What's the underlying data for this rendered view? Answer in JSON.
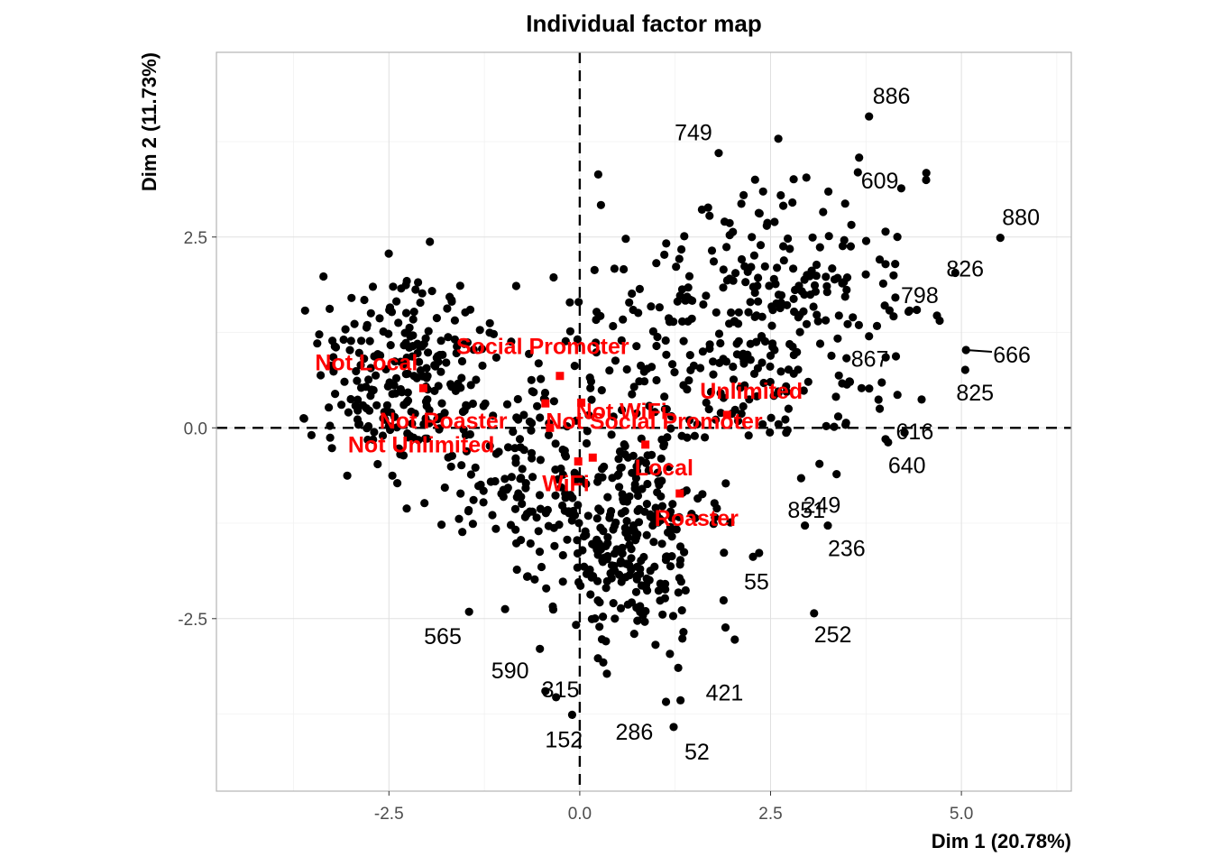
{
  "chart_data": {
    "type": "scatter",
    "title": "Individual factor map",
    "xlabel": "Dim 1 (20.78%)",
    "ylabel": "Dim 2 (11.73%)",
    "xlim": [
      -4.76,
      6.44
    ],
    "ylim": [
      -4.76,
      4.92
    ],
    "x_ticks": [
      -2.5,
      0.0,
      2.5,
      5.0
    ],
    "x_tick_labels": [
      "-2.5",
      "0.0",
      "2.5",
      "5.0"
    ],
    "y_ticks": [
      -2.5,
      0.0,
      2.5
    ],
    "y_tick_labels": [
      "-2.5",
      "0.0",
      "2.5"
    ],
    "grid": true,
    "point_color": "#000000",
    "category_color": "#ff0000",
    "labeled_individuals": [
      {
        "label": "886",
        "x": 3.79,
        "y": 4.08
      },
      {
        "label": "609",
        "x": 3.66,
        "y": 3.54
      },
      {
        "label": "749",
        "x": 1.82,
        "y": 3.6
      },
      {
        "label": "880",
        "x": 5.51,
        "y": 2.49
      },
      {
        "label": "826",
        "x": 4.92,
        "y": 2.03
      },
      {
        "label": "798",
        "x": 4.68,
        "y": 1.47
      },
      {
        "label": "666",
        "x": 5.06,
        "y": 1.02
      },
      {
        "label": "825",
        "x": 5.05,
        "y": 0.76
      },
      {
        "label": "867",
        "x": 3.79,
        "y": 1.2
      },
      {
        "label": "616",
        "x": 3.93,
        "y": 0.25
      },
      {
        "label": "640",
        "x": 4.04,
        "y": -0.19
      },
      {
        "label": "851",
        "x": 2.9,
        "y": -0.66
      },
      {
        "label": "249",
        "x": 2.95,
        "y": -1.28
      },
      {
        "label": "236",
        "x": 3.25,
        "y": -1.28
      },
      {
        "label": "55",
        "x": 2.27,
        "y": -1.69
      },
      {
        "label": "252",
        "x": 3.07,
        "y": -2.43
      },
      {
        "label": "565",
        "x": -1.45,
        "y": -2.41
      },
      {
        "label": "590",
        "x": -0.45,
        "y": -3.45
      },
      {
        "label": "315",
        "x": -0.31,
        "y": -3.53
      },
      {
        "label": "152",
        "x": -0.1,
        "y": -3.76
      },
      {
        "label": "286",
        "x": 1.13,
        "y": -3.59
      },
      {
        "label": "421",
        "x": 1.32,
        "y": -3.57
      },
      {
        "label": "52",
        "x": 1.23,
        "y": -3.92
      }
    ],
    "categories": [
      {
        "label": "Not Local",
        "x": -2.05,
        "y": 0.52
      },
      {
        "label": "Social Promoter",
        "x": -0.26,
        "y": 0.68
      },
      {
        "label": "Not WiFi",
        "x": 0.02,
        "y": 0.33
      },
      {
        "label": "Not Roaster",
        "x": -0.45,
        "y": 0.32
      },
      {
        "label": "Unlimited",
        "x": 1.93,
        "y": 0.17
      },
      {
        "label": "Not Social Promoter",
        "x": 0.17,
        "y": -0.39
      },
      {
        "label": "Not Unlimited",
        "x": -0.39,
        "y": 0.0
      },
      {
        "label": "WiFi",
        "x": -0.02,
        "y": -0.44
      },
      {
        "label": "Local",
        "x": 0.86,
        "y": -0.22
      },
      {
        "label": "Roaster",
        "x": 1.31,
        "y": -0.86
      }
    ]
  }
}
